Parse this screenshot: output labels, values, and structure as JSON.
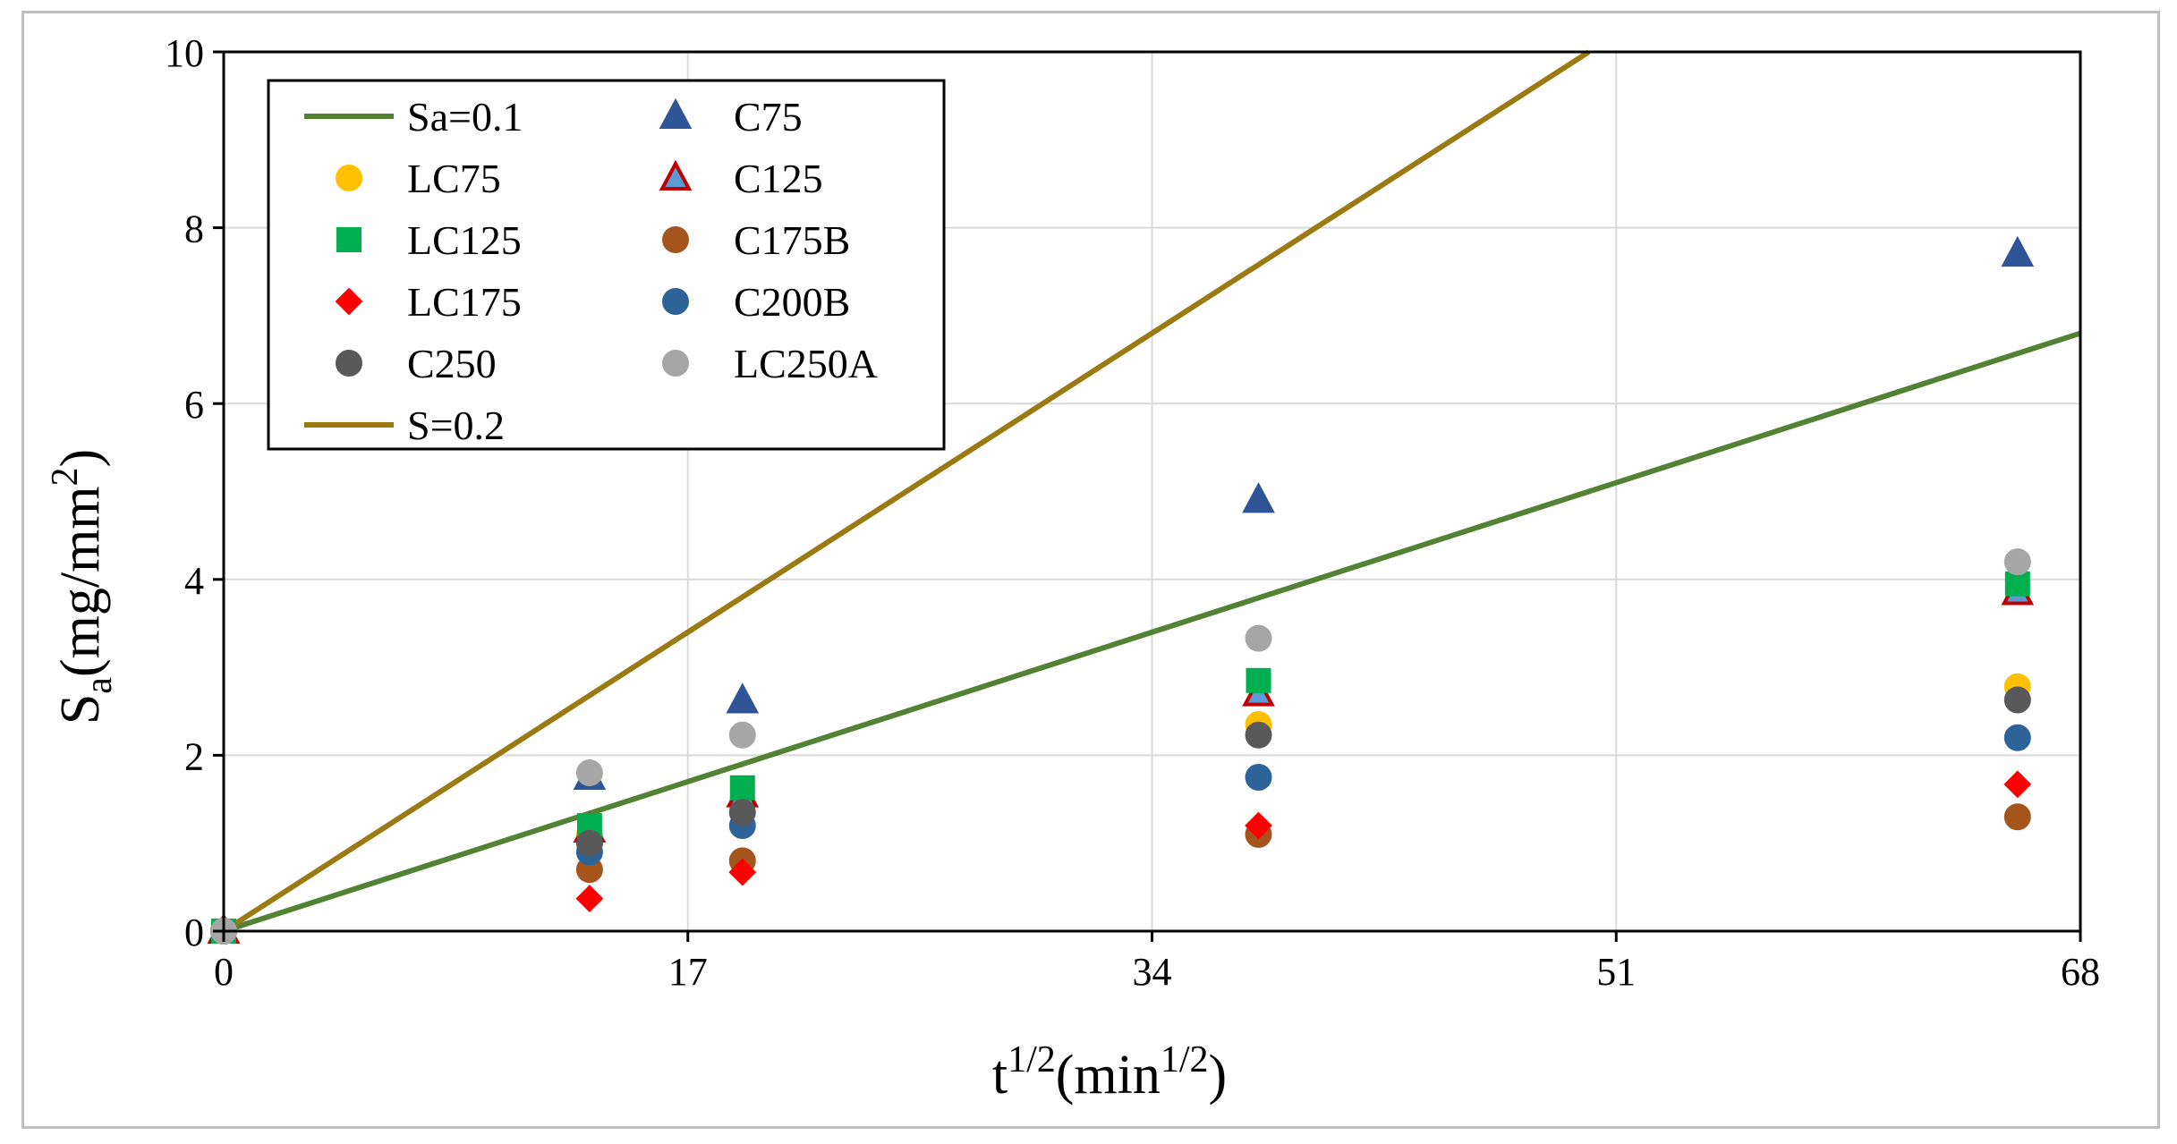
{
  "chart_data": {
    "type": "scatter",
    "title": "",
    "xlabel": {
      "main": "t",
      "sup1": "1/2",
      "mid": "(min",
      "sup2": "1/2",
      "end": ")"
    },
    "ylabel": {
      "main": "S",
      "sub": "a",
      "mid": "(mg/mm",
      "sup": "2",
      "end": ")"
    },
    "xlim": [
      0,
      68
    ],
    "ylim": [
      0,
      10
    ],
    "xticks": [
      0,
      17,
      34,
      51,
      68
    ],
    "yticks": [
      0,
      2,
      4,
      6,
      8,
      10
    ],
    "xtick_labels": [
      "0",
      "17",
      "34",
      "51",
      "68"
    ],
    "ytick_labels": [
      "0",
      "2",
      "4",
      "6",
      "8",
      "10"
    ],
    "grid": true,
    "legend_position": "top-left",
    "lines": [
      {
        "name": "Sa=0.1",
        "color": "#548235",
        "slope": 0.1
      },
      {
        "name": "S=0.2",
        "color": "#9C7A12",
        "slope": 0.2
      }
    ],
    "series": [
      {
        "name": "C75",
        "marker": "triangle",
        "color": "#2F5597",
        "edge": "#2F5597",
        "x": [
          0,
          13.4,
          19,
          37.9,
          65.7
        ],
        "y": [
          0,
          1.75,
          2.62,
          4.9,
          7.7
        ]
      },
      {
        "name": "LC75",
        "marker": "circle",
        "color": "#FFC000",
        "edge": "#FFC000",
        "x": [
          0,
          13.4,
          19,
          37.9,
          65.7
        ],
        "y": [
          0,
          1.1,
          1.45,
          2.35,
          2.78
        ]
      },
      {
        "name": "C125",
        "marker": "triangle",
        "color": "#5B9BD5",
        "edge": "#C00000",
        "x": [
          0,
          13.4,
          19,
          37.9,
          65.7
        ],
        "y": [
          0,
          1.15,
          1.55,
          2.7,
          3.85
        ]
      },
      {
        "name": "LC125",
        "marker": "square",
        "color": "#00B050",
        "edge": "#00B050",
        "x": [
          0,
          13.4,
          19,
          37.9,
          65.7
        ],
        "y": [
          0,
          1.2,
          1.63,
          2.85,
          3.95
        ]
      },
      {
        "name": "C175B",
        "marker": "circle",
        "color": "#A5541C",
        "edge": "#A5541C",
        "x": [
          0,
          13.4,
          19,
          37.9,
          65.7
        ],
        "y": [
          0,
          0.7,
          0.8,
          1.1,
          1.3
        ]
      },
      {
        "name": "LC175",
        "marker": "diamond",
        "color": "#FF0000",
        "edge": "#FF0000",
        "x": [
          0,
          13.4,
          19,
          37.9,
          65.7
        ],
        "y": [
          0,
          0.37,
          0.67,
          1.2,
          1.67
        ]
      },
      {
        "name": "C200B",
        "marker": "circle",
        "color": "#2E6399",
        "edge": "#2E6399",
        "x": [
          0,
          13.4,
          19,
          37.9,
          65.7
        ],
        "y": [
          0,
          0.9,
          1.2,
          1.75,
          2.2
        ]
      },
      {
        "name": "C250",
        "marker": "circle",
        "color": "#595959",
        "edge": "#595959",
        "x": [
          0,
          13.4,
          19,
          37.9,
          65.7
        ],
        "y": [
          0,
          1.0,
          1.35,
          2.23,
          2.63
        ]
      },
      {
        "name": "LC250A",
        "marker": "circle",
        "color": "#A6A6A6",
        "edge": "#A6A6A6",
        "x": [
          0,
          13.4,
          19,
          37.9,
          65.7
        ],
        "y": [
          0,
          1.8,
          2.23,
          3.33,
          4.2
        ]
      }
    ],
    "legend": {
      "left": [
        {
          "label": "Sa=0.1",
          "kind": "line",
          "ref": "Sa=0.1"
        },
        {
          "label": "LC75",
          "kind": "marker",
          "ref": "LC75"
        },
        {
          "label": "LC125",
          "kind": "marker",
          "ref": "LC125"
        },
        {
          "label": "LC175",
          "kind": "marker",
          "ref": "LC175"
        },
        {
          "label": "C250",
          "kind": "marker",
          "ref": "C250"
        },
        {
          "label": "S=0.2",
          "kind": "line",
          "ref": "S=0.2"
        }
      ],
      "right": [
        {
          "label": "C75",
          "kind": "marker",
          "ref": "C75"
        },
        {
          "label": "C125",
          "kind": "marker",
          "ref": "C125"
        },
        {
          "label": "C175B",
          "kind": "marker",
          "ref": "C175B"
        },
        {
          "label": "C200B",
          "kind": "marker",
          "ref": "C200B"
        },
        {
          "label": "LC250A",
          "kind": "marker",
          "ref": "LC250A"
        }
      ]
    }
  }
}
